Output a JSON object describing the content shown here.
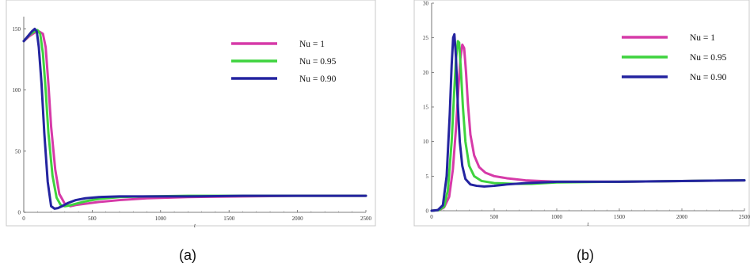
{
  "chart_data": [
    {
      "type": "line",
      "caption": "(a)",
      "xlabel": "t",
      "ylabel": "",
      "xlim": [
        0,
        2500
      ],
      "ylim": [
        0,
        160
      ],
      "xticks": [
        "0",
        "500",
        "1000",
        "1500",
        "2000",
        "2500"
      ],
      "yticks": [
        "0",
        "50",
        "100",
        "150"
      ],
      "grid": false,
      "legend": "top-right",
      "series": [
        {
          "name": "Nu = 1",
          "color": "#d63aa8",
          "x": [
            0,
            40,
            80,
            110,
            140,
            160,
            180,
            200,
            230,
            260,
            300,
            340,
            380,
            450,
            550,
            700,
            900,
            1200,
            1600,
            2000,
            2500
          ],
          "y": [
            140,
            144,
            147,
            148,
            146,
            135,
            105,
            70,
            35,
            15,
            7,
            5,
            6,
            7,
            8.5,
            10,
            11.5,
            12.5,
            13,
            13.5,
            13.5
          ]
        },
        {
          "name": "Nu = 0.95",
          "color": "#3ed33e",
          "x": [
            0,
            40,
            80,
            100,
            120,
            140,
            160,
            180,
            210,
            240,
            270,
            300,
            330,
            380,
            450,
            550,
            700,
            900,
            1200,
            1600,
            2000,
            2500
          ],
          "y": [
            140,
            145,
            148,
            149,
            146,
            130,
            100,
            65,
            30,
            12,
            6,
            5,
            5.5,
            7,
            9,
            11,
            12.5,
            13,
            13.5,
            13.5,
            13.5,
            13.5
          ]
        },
        {
          "name": "Nu = 0.90",
          "color": "#2424a0",
          "x": [
            0,
            30,
            60,
            80,
            95,
            110,
            130,
            150,
            175,
            200,
            225,
            250,
            280,
            320,
            380,
            450,
            550,
            700,
            900,
            1200,
            1600,
            2000,
            2500
          ],
          "y": [
            140,
            144,
            148,
            150,
            148,
            135,
            105,
            65,
            25,
            5,
            3,
            3.5,
            5,
            7.5,
            10,
            11.5,
            12.5,
            13,
            13,
            13,
            13.5,
            13.5,
            13.5
          ]
        }
      ]
    },
    {
      "type": "line",
      "caption": "(b)",
      "xlabel": "t",
      "ylabel": "",
      "xlim": [
        0,
        2500
      ],
      "ylim": [
        0,
        30
      ],
      "xticks": [
        "0",
        "500",
        "1000",
        "1500",
        "2000",
        "2500"
      ],
      "yticks": [
        "0",
        "5",
        "10",
        "15",
        "20",
        "25",
        "30"
      ],
      "grid": false,
      "legend": "top-right",
      "series": [
        {
          "name": "Nu = 1",
          "color": "#d63aa8",
          "x": [
            0,
            60,
            100,
            140,
            170,
            195,
            215,
            230,
            245,
            260,
            275,
            290,
            310,
            340,
            380,
            430,
            500,
            600,
            750,
            1000,
            1500,
            2000,
            2500
          ],
          "y": [
            0,
            0.1,
            0.5,
            2,
            6,
            12,
            18,
            22,
            24,
            23.5,
            20,
            15.5,
            11,
            8,
            6.3,
            5.5,
            5,
            4.7,
            4.4,
            4.2,
            4.2,
            4.3,
            4.4
          ]
        },
        {
          "name": "Nu = 0.95",
          "color": "#3ed33e",
          "x": [
            0,
            60,
            100,
            130,
            160,
            180,
            195,
            210,
            220,
            235,
            250,
            270,
            300,
            340,
            400,
            500,
            650,
            800,
            1000,
            1500,
            2000,
            2500
          ],
          "y": [
            0,
            0.1,
            0.6,
            3,
            10,
            17,
            22,
            24.5,
            24.3,
            20,
            15,
            10,
            6.5,
            5,
            4.3,
            4,
            3.9,
            3.9,
            4.1,
            4.2,
            4.3,
            4.4
          ]
        },
        {
          "name": "Nu = 0.90",
          "color": "#2424a0",
          "x": [
            0,
            50,
            90,
            120,
            145,
            160,
            172,
            182,
            195,
            210,
            225,
            245,
            270,
            310,
            360,
            420,
            500,
            600,
            750,
            1000,
            1500,
            2000,
            2500
          ],
          "y": [
            0,
            0.1,
            0.8,
            5,
            14,
            21,
            25,
            25.5,
            22,
            15,
            10,
            6.5,
            4.6,
            3.8,
            3.6,
            3.5,
            3.6,
            3.8,
            4,
            4.2,
            4.2,
            4.3,
            4.4
          ]
        }
      ]
    }
  ]
}
